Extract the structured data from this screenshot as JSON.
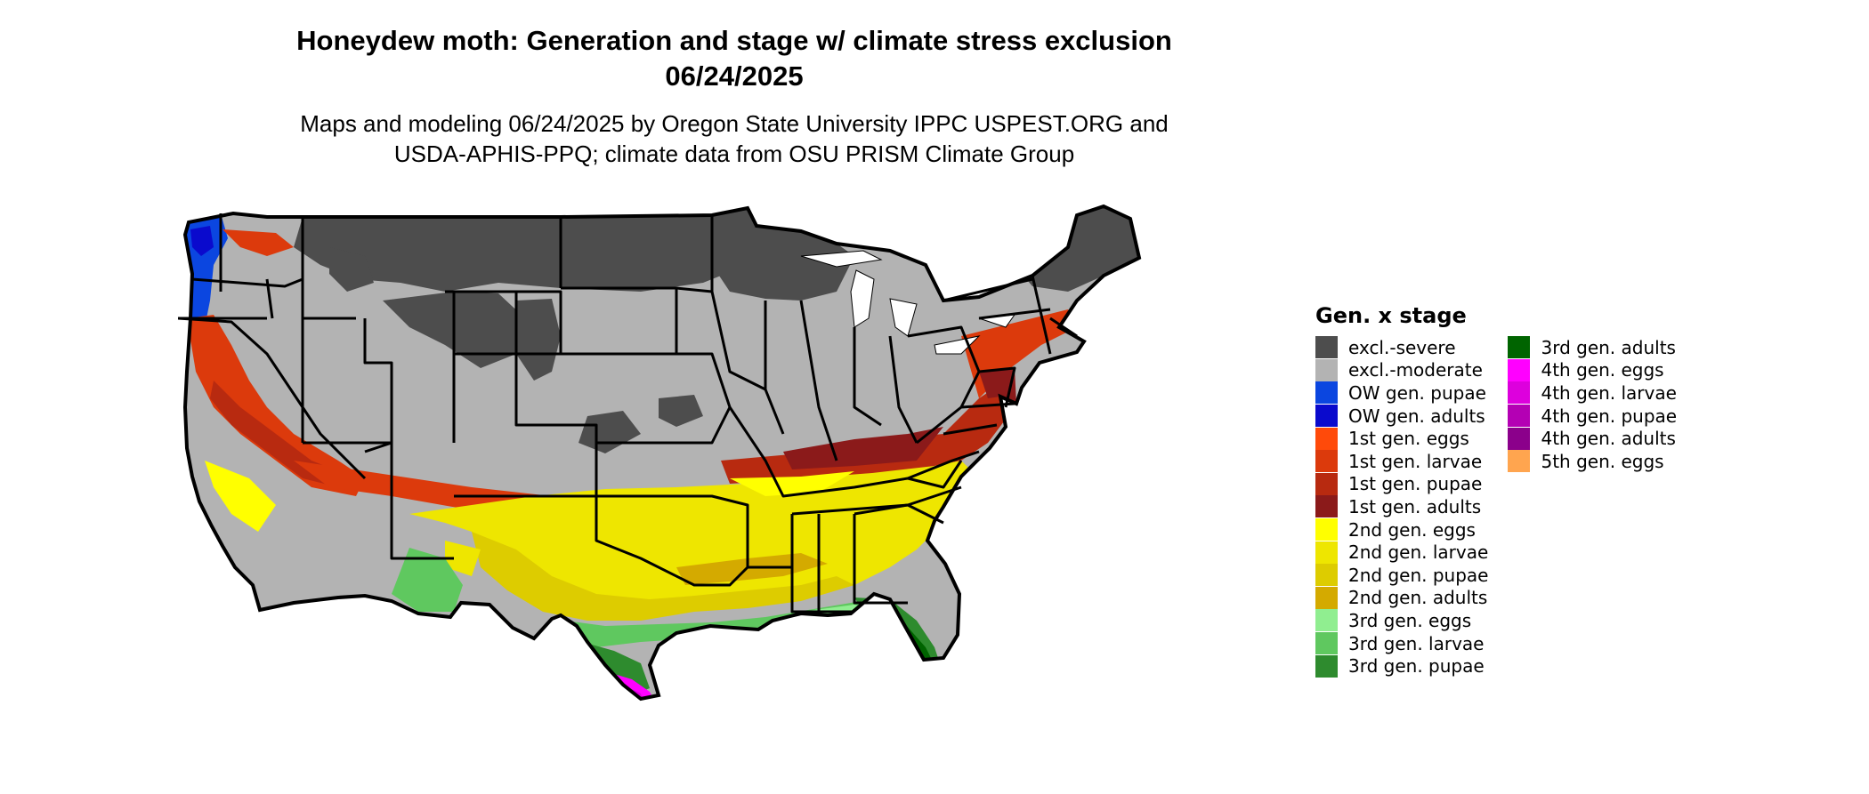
{
  "title": {
    "line1": "Honeydew moth: Generation and stage w/ climate stress exclusion",
    "line2": "06/24/2025"
  },
  "subtitle": {
    "line1": "Maps and modeling 06/24/2025 by Oregon State University IPPC USPEST.ORG and",
    "line2": "USDA-APHIS-PPQ; climate data from OSU PRISM Climate Group"
  },
  "legend": {
    "title": "Gen. x stage",
    "column1": [
      {
        "label": "excl.-severe",
        "color": "#4d4d4d"
      },
      {
        "label": "excl.-moderate",
        "color": "#b3b3b3"
      },
      {
        "label": "OW gen. pupae",
        "color": "#0b46e0"
      },
      {
        "label": "OW gen. adults",
        "color": "#0a0acd"
      },
      {
        "label": "1st gen. eggs",
        "color": "#ff4a0a"
      },
      {
        "label": "1st gen. larvae",
        "color": "#dc3a0c"
      },
      {
        "label": "1st gen. pupae",
        "color": "#b82a10"
      },
      {
        "label": "1st gen. adults",
        "color": "#8b1a1a"
      },
      {
        "label": "2nd gen. eggs",
        "color": "#ffff00"
      },
      {
        "label": "2nd gen. larvae",
        "color": "#eee600"
      },
      {
        "label": "2nd gen. pupae",
        "color": "#ddcc00"
      },
      {
        "label": "2nd gen. adults",
        "color": "#d4aa00"
      },
      {
        "label": "3rd gen. eggs",
        "color": "#90ee90"
      },
      {
        "label": "3rd gen. larvae",
        "color": "#5fc85f"
      },
      {
        "label": "3rd gen. pupae",
        "color": "#2e8b2e"
      }
    ],
    "column2": [
      {
        "label": "3rd gen. adults",
        "color": "#006400"
      },
      {
        "label": "4th gen. eggs",
        "color": "#ff00ff"
      },
      {
        "label": "4th gen. larvae",
        "color": "#dd00dd"
      },
      {
        "label": "4th gen. pupae",
        "color": "#b400b4"
      },
      {
        "label": "4th gen. adults",
        "color": "#8b008b"
      },
      {
        "label": "5th gen. eggs",
        "color": "#ffa54f"
      }
    ]
  }
}
